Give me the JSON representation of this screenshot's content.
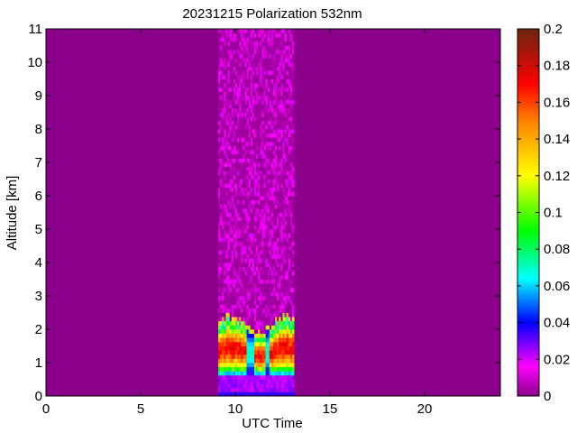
{
  "chart_data": {
    "type": "heatmap",
    "title": "20231215 Polarization 532nm",
    "xlabel": "UTC Time",
    "ylabel": "Altitude [km]",
    "xlim": [
      0,
      24
    ],
    "ylim": [
      0,
      11
    ],
    "x_ticks": [
      0,
      5,
      10,
      15,
      20
    ],
    "y_ticks": [
      0,
      1,
      2,
      3,
      4,
      5,
      6,
      7,
      8,
      9,
      10,
      11
    ],
    "x_tick_labels": [
      "0",
      "5",
      "10",
      "15",
      "20"
    ],
    "y_tick_labels": [
      "0",
      "1",
      "2",
      "3",
      "4",
      "5",
      "6",
      "7",
      "8",
      "9",
      "10",
      "11"
    ],
    "background_value": 0,
    "data_time_range": [
      9.1,
      13.1
    ],
    "layers": [
      {
        "name": "noise",
        "x_range": [
          9.1,
          13.1
        ],
        "altitude_range": [
          2.2,
          11.0
        ],
        "value_range": [
          0.0,
          0.02
        ]
      },
      {
        "name": "near-surface layer",
        "x_range": [
          9.1,
          13.1
        ],
        "altitude_range": [
          0.0,
          0.6
        ],
        "value_range": [
          0.02,
          0.04
        ]
      },
      {
        "name": "aerosol/cloud layer",
        "x_range": [
          9.1,
          13.1
        ],
        "altitude_range": [
          0.6,
          2.2
        ],
        "value_range": [
          0.04,
          0.18
        ]
      }
    ],
    "colorbar": {
      "min": 0,
      "max": 0.2,
      "ticks": [
        0,
        0.02,
        0.04,
        0.06,
        0.08,
        0.1,
        0.12,
        0.14,
        0.16,
        0.18,
        0.2
      ],
      "tick_labels": [
        "0",
        "0.02",
        "0.04",
        "0.06",
        "0.08",
        "0.1",
        "0.12",
        "0.14",
        "0.16",
        "0.18",
        "0.2"
      ],
      "colormap": [
        "#8b008b",
        "#ff00ff",
        "#0000ff",
        "#00ffff",
        "#00ff00",
        "#ffff00",
        "#ff8000",
        "#ff0000",
        "#6b2410"
      ]
    },
    "grid": false
  }
}
